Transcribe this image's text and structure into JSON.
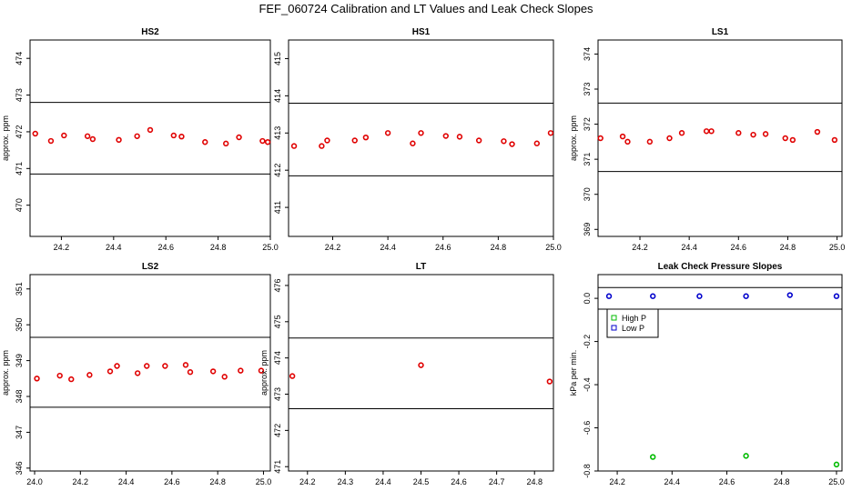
{
  "title": "FEF_060724  Calibration and LT Values and Leak Check Slopes",
  "chart_data": [
    {
      "type": "scatter",
      "title": "HS2",
      "ylabel": "approx. ppm",
      "xlim": [
        24.08,
        25.0
      ],
      "ylim": [
        469.15,
        474.5
      ],
      "xticks": [
        "24.2",
        "24.4",
        "24.6",
        "24.8",
        "25.0"
      ],
      "yticks": [
        "470",
        "471",
        "472",
        "473",
        "474"
      ],
      "hlines": [
        472.8,
        470.85
      ],
      "color": "#e00000",
      "x": [
        24.1,
        24.16,
        24.21,
        24.3,
        24.32,
        24.42,
        24.49,
        24.54,
        24.63,
        24.66,
        24.75,
        24.83,
        24.88,
        24.97,
        24.99
      ],
      "y": [
        471.95,
        471.75,
        471.9,
        471.88,
        471.8,
        471.78,
        471.88,
        472.05,
        471.9,
        471.87,
        471.72,
        471.68,
        471.85,
        471.75,
        471.72
      ]
    },
    {
      "type": "scatter",
      "title": "HS1",
      "ylabel": "",
      "xlim": [
        24.04,
        25.0
      ],
      "ylim": [
        410.22,
        415.5
      ],
      "xticks": [
        "24.2",
        "24.4",
        "24.6",
        "24.8",
        "25.0"
      ],
      "yticks": [
        "411",
        "412",
        "413",
        "414",
        "415"
      ],
      "hlines": [
        413.8,
        411.85
      ],
      "color": "#e00000",
      "x": [
        24.06,
        24.16,
        24.18,
        24.28,
        24.32,
        24.4,
        24.49,
        24.52,
        24.61,
        24.66,
        24.73,
        24.82,
        24.85,
        24.94,
        24.99
      ],
      "y": [
        412.65,
        412.65,
        412.8,
        412.8,
        412.88,
        413.0,
        412.72,
        413.0,
        412.92,
        412.9,
        412.8,
        412.78,
        412.7,
        412.72,
        413.0
      ]
    },
    {
      "type": "scatter",
      "title": "LS1",
      "ylabel": "approx. ppm",
      "xlim": [
        24.03,
        25.02
      ],
      "ylim": [
        368.8,
        374.4
      ],
      "xticks": [
        "24.2",
        "24.4",
        "24.6",
        "24.8",
        "25.0"
      ],
      "yticks": [
        "369",
        "370",
        "371",
        "372",
        "373",
        "374"
      ],
      "hlines": [
        372.6,
        370.65
      ],
      "color": "#e00000",
      "x": [
        24.04,
        24.13,
        24.15,
        24.24,
        24.32,
        24.37,
        24.47,
        24.49,
        24.6,
        24.66,
        24.71,
        24.79,
        24.82,
        24.92,
        24.99
      ],
      "y": [
        371.6,
        371.65,
        371.5,
        371.5,
        371.6,
        371.75,
        371.8,
        371.8,
        371.75,
        371.7,
        371.72,
        371.6,
        371.55,
        371.78,
        371.55
      ]
    },
    {
      "type": "scatter",
      "title": "LS2",
      "ylabel": "approx. ppm",
      "xlim": [
        23.98,
        25.03
      ],
      "ylim": [
        345.92,
        351.4
      ],
      "xticks": [
        "24.0",
        "24.2",
        "24.4",
        "24.6",
        "24.8",
        "25.0"
      ],
      "yticks": [
        "346",
        "347",
        "348",
        "349",
        "350",
        "351"
      ],
      "hlines": [
        349.65,
        347.7
      ],
      "color": "#e00000",
      "x": [
        24.01,
        24.11,
        24.16,
        24.24,
        24.33,
        24.36,
        24.45,
        24.49,
        24.57,
        24.66,
        24.68,
        24.78,
        24.83,
        24.9,
        24.99
      ],
      "y": [
        348.5,
        348.58,
        348.48,
        348.6,
        348.7,
        348.85,
        348.65,
        348.85,
        348.85,
        348.88,
        348.68,
        348.7,
        348.55,
        348.72,
        348.72
      ]
    },
    {
      "type": "scatter",
      "title": "LT",
      "ylabel": "approx. ppm",
      "xlim": [
        24.15,
        24.85
      ],
      "ylim": [
        470.88,
        476.3
      ],
      "xticks": [
        "24.2",
        "24.3",
        "24.4",
        "24.5",
        "24.6",
        "24.7",
        "24.8"
      ],
      "yticks": [
        "471",
        "472",
        "473",
        "474",
        "475",
        "476"
      ],
      "hlines": [
        474.55,
        472.6
      ],
      "color": "#e00000",
      "x": [
        24.16,
        24.5,
        24.84
      ],
      "y": [
        473.5,
        473.8,
        473.35
      ]
    },
    {
      "type": "scatter",
      "title": "Leak Check Pressure Slopes",
      "ylabel": "kPa per min.",
      "xlim": [
        24.13,
        25.02
      ],
      "ylim": [
        -0.8,
        0.11
      ],
      "xticks": [
        "24.2",
        "24.4",
        "24.6",
        "24.8",
        "25.0"
      ],
      "yticks": [
        "-0.8",
        "-0.6",
        "-0.4",
        "-0.2",
        "0.0"
      ],
      "hlines": [
        0.05,
        -0.05
      ],
      "legend": {
        "position": "top-left",
        "entries": [
          "High P",
          "Low P"
        ],
        "colors": [
          "#00bb00",
          "#0000cc"
        ]
      },
      "series": [
        {
          "name": "High P",
          "color": "#00bb00",
          "x": [
            24.33,
            24.67,
            25.0
          ],
          "y": [
            -0.735,
            -0.73,
            -0.77
          ]
        },
        {
          "name": "Low P",
          "color": "#0000cc",
          "x": [
            24.17,
            24.33,
            24.5,
            24.67,
            24.83,
            25.0
          ],
          "y": [
            0.01,
            0.01,
            0.01,
            0.01,
            0.015,
            0.01
          ]
        }
      ]
    }
  ]
}
